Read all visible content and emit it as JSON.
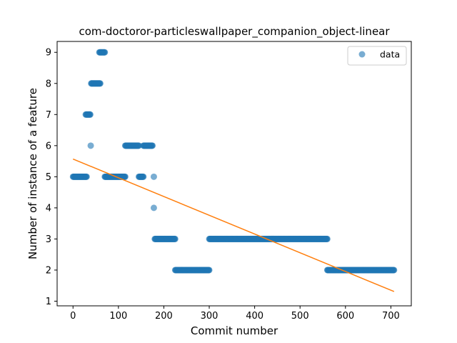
{
  "chart_data": {
    "type": "scatter",
    "title": "com-doctoror-particleswallpaper_companion_object-linear",
    "xlabel": "Commit number",
    "ylabel": "Number of instance of a feature",
    "xlim": [
      -35,
      745
    ],
    "ylim": [
      0.85,
      9.35
    ],
    "xticks": [
      0,
      100,
      200,
      300,
      400,
      500,
      600,
      700
    ],
    "yticks": [
      1,
      2,
      3,
      4,
      5,
      6,
      7,
      8,
      9
    ],
    "xtick_labels": [
      "0",
      "100",
      "200",
      "300",
      "400",
      "500",
      "600",
      "700"
    ],
    "ytick_labels": [
      "1",
      "2",
      "3",
      "4",
      "5",
      "6",
      "7",
      "8",
      "9"
    ],
    "legend": {
      "position": "top-right",
      "entries": [
        "data"
      ]
    },
    "grid": false,
    "series": [
      {
        "name": "data",
        "kind": "scatter",
        "color": "#1f77b4",
        "alpha": 0.6,
        "segments": [
          {
            "x_start": 0,
            "x_end": 30,
            "y": 5
          },
          {
            "x_start": 28,
            "x_end": 38,
            "y": 7
          },
          {
            "x_start": 39,
            "x_end": 39,
            "y": 6
          },
          {
            "x_start": 40,
            "x_end": 60,
            "y": 8
          },
          {
            "x_start": 58,
            "x_end": 70,
            "y": 9
          },
          {
            "x_start": 70,
            "x_end": 115,
            "y": 5
          },
          {
            "x_start": 115,
            "x_end": 145,
            "y": 6
          },
          {
            "x_start": 145,
            "x_end": 155,
            "y": 5
          },
          {
            "x_start": 155,
            "x_end": 175,
            "y": 6
          },
          {
            "x_start": 178,
            "x_end": 178,
            "y": 5
          },
          {
            "x_start": 178,
            "x_end": 178,
            "y": 4
          },
          {
            "x_start": 180,
            "x_end": 225,
            "y": 3
          },
          {
            "x_start": 225,
            "x_end": 300,
            "y": 2
          },
          {
            "x_start": 300,
            "x_end": 560,
            "y": 3
          },
          {
            "x_start": 560,
            "x_end": 707,
            "y": 2
          }
        ]
      },
      {
        "name": "linear fit",
        "kind": "line",
        "color": "#ff7f0e",
        "x": [
          0,
          707
        ],
        "y": [
          5.57,
          1.31
        ]
      }
    ]
  }
}
